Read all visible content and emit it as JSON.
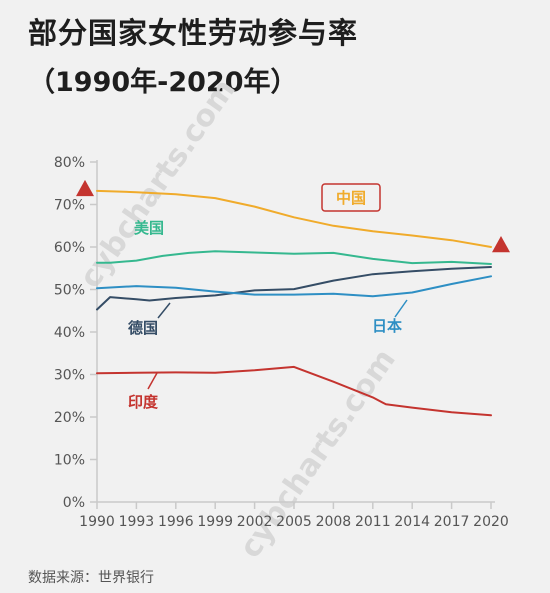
{
  "header": {
    "title": "部分国家女性劳动参与率",
    "subtitle": "（1990年-2020年）"
  },
  "footer": {
    "source": "数据来源：世界银行"
  },
  "chart_data": {
    "type": "line",
    "title": "部分国家女性劳动参与率",
    "subtitle": "（1990年-2020年）",
    "xlabel": "",
    "ylabel": "",
    "xlim": [
      1990,
      2020
    ],
    "ylim": [
      0,
      80
    ],
    "x_ticks": [
      "1990",
      "1993",
      "1996",
      "1999",
      "2002",
      "2005",
      "2008",
      "2011",
      "2014",
      "2017",
      "2020"
    ],
    "y_ticks": [
      "0%",
      "10%",
      "20%",
      "30%",
      "40%",
      "50%",
      "60%",
      "70%",
      "80%"
    ],
    "grid": false,
    "legend": "inline labels",
    "series": [
      {
        "name": "中国",
        "color": "#f0ab2b",
        "x": [
          1990,
          1993,
          1996,
          1999,
          2002,
          2005,
          2008,
          2011,
          2014,
          2017,
          2020
        ],
        "values": [
          73.2,
          72.9,
          72.4,
          71.5,
          69.5,
          67.0,
          65.0,
          63.7,
          62.7,
          61.6,
          60.0
        ]
      },
      {
        "name": "美国",
        "color": "#35b88f",
        "x": [
          1990,
          1991,
          1993,
          1995,
          1997,
          1999,
          2002,
          2005,
          2008,
          2011,
          2014,
          2017,
          2020
        ],
        "values": [
          56.3,
          56.3,
          56.8,
          57.9,
          58.6,
          59.0,
          58.7,
          58.4,
          58.6,
          57.2,
          56.2,
          56.5,
          56.0
        ]
      },
      {
        "name": "德国",
        "color": "#354d66",
        "x": [
          1990,
          1991,
          1993,
          1994,
          1996,
          1999,
          2002,
          2005,
          2008,
          2011,
          2014,
          2017,
          2020
        ],
        "values": [
          45.3,
          48.2,
          47.7,
          47.4,
          48.0,
          48.6,
          49.8,
          50.1,
          52.1,
          53.6,
          54.3,
          54.9,
          55.3
        ]
      },
      {
        "name": "日本",
        "color": "#2e8fc4",
        "x": [
          1990,
          1993,
          1996,
          1999,
          2002,
          2005,
          2008,
          2011,
          2014,
          2017,
          2020
        ],
        "values": [
          50.3,
          50.8,
          50.4,
          49.5,
          48.8,
          48.8,
          49.0,
          48.4,
          49.3,
          51.3,
          53.1
        ]
      },
      {
        "name": "印度",
        "color": "#c4342f",
        "x": [
          1990,
          1993,
          1996,
          1999,
          2002,
          2005,
          2008,
          2011,
          2012,
          2014,
          2017,
          2020
        ],
        "values": [
          30.3,
          30.4,
          30.5,
          30.4,
          31.0,
          31.8,
          28.3,
          24.6,
          23.0,
          22.2,
          21.1,
          20.4
        ]
      }
    ],
    "markers": [
      {
        "x": 1990,
        "y": 73.2,
        "shape": "triangle",
        "color": "#c4342f"
      },
      {
        "x": 2020,
        "y": 60.0,
        "shape": "triangle",
        "color": "#c4342f"
      }
    ]
  },
  "labels": {
    "china": "中国",
    "usa": "美国",
    "germany": "德国",
    "japan": "日本",
    "india": "印度"
  },
  "colors": {
    "china": "#f0ab2b",
    "usa": "#35b88f",
    "germany": "#354d66",
    "japan": "#2e8fc4",
    "india": "#c4342f",
    "axis": "#c9c9c9"
  }
}
